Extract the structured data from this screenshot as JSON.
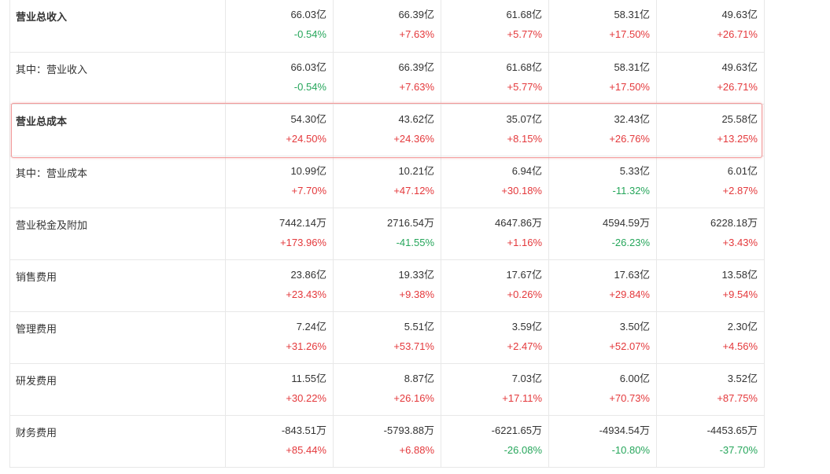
{
  "table": {
    "rows": [
      {
        "label": "营业总收入",
        "bold": true,
        "cells": [
          {
            "value": "66.03亿",
            "change": "-0.54%",
            "trend": "down"
          },
          {
            "value": "66.39亿",
            "change": "+7.63%",
            "trend": "up"
          },
          {
            "value": "61.68亿",
            "change": "+5.77%",
            "trend": "up"
          },
          {
            "value": "58.31亿",
            "change": "+17.50%",
            "trend": "up"
          },
          {
            "value": "49.63亿",
            "change": "+26.71%",
            "trend": "up"
          }
        ]
      },
      {
        "label": "其中：营业收入",
        "bold": false,
        "cells": [
          {
            "value": "66.03亿",
            "change": "-0.54%",
            "trend": "down"
          },
          {
            "value": "66.39亿",
            "change": "+7.63%",
            "trend": "up"
          },
          {
            "value": "61.68亿",
            "change": "+5.77%",
            "trend": "up"
          },
          {
            "value": "58.31亿",
            "change": "+17.50%",
            "trend": "up"
          },
          {
            "value": "49.63亿",
            "change": "+26.71%",
            "trend": "up"
          }
        ]
      },
      {
        "label": "营业总成本",
        "bold": true,
        "highlighted": true,
        "cells": [
          {
            "value": "54.30亿",
            "change": "+24.50%",
            "trend": "up"
          },
          {
            "value": "43.62亿",
            "change": "+24.36%",
            "trend": "up"
          },
          {
            "value": "35.07亿",
            "change": "+8.15%",
            "trend": "up"
          },
          {
            "value": "32.43亿",
            "change": "+26.76%",
            "trend": "up"
          },
          {
            "value": "25.58亿",
            "change": "+13.25%",
            "trend": "up"
          }
        ]
      },
      {
        "label": "其中：营业成本",
        "bold": false,
        "cells": [
          {
            "value": "10.99亿",
            "change": "+7.70%",
            "trend": "up"
          },
          {
            "value": "10.21亿",
            "change": "+47.12%",
            "trend": "up"
          },
          {
            "value": "6.94亿",
            "change": "+30.18%",
            "trend": "up"
          },
          {
            "value": "5.33亿",
            "change": "-11.32%",
            "trend": "down"
          },
          {
            "value": "6.01亿",
            "change": "+2.87%",
            "trend": "up"
          }
        ]
      },
      {
        "label": "营业税金及附加",
        "bold": false,
        "cells": [
          {
            "value": "7442.14万",
            "change": "+173.96%",
            "trend": "up"
          },
          {
            "value": "2716.54万",
            "change": "-41.55%",
            "trend": "down"
          },
          {
            "value": "4647.86万",
            "change": "+1.16%",
            "trend": "up"
          },
          {
            "value": "4594.59万",
            "change": "-26.23%",
            "trend": "down"
          },
          {
            "value": "6228.18万",
            "change": "+3.43%",
            "trend": "up"
          }
        ]
      },
      {
        "label": "销售费用",
        "bold": false,
        "cells": [
          {
            "value": "23.86亿",
            "change": "+23.43%",
            "trend": "up"
          },
          {
            "value": "19.33亿",
            "change": "+9.38%",
            "trend": "up"
          },
          {
            "value": "17.67亿",
            "change": "+0.26%",
            "trend": "up"
          },
          {
            "value": "17.63亿",
            "change": "+29.84%",
            "trend": "up"
          },
          {
            "value": "13.58亿",
            "change": "+9.54%",
            "trend": "up"
          }
        ]
      },
      {
        "label": "管理费用",
        "bold": false,
        "cells": [
          {
            "value": "7.24亿",
            "change": "+31.26%",
            "trend": "up"
          },
          {
            "value": "5.51亿",
            "change": "+53.71%",
            "trend": "up"
          },
          {
            "value": "3.59亿",
            "change": "+2.47%",
            "trend": "up"
          },
          {
            "value": "3.50亿",
            "change": "+52.07%",
            "trend": "up"
          },
          {
            "value": "2.30亿",
            "change": "+4.56%",
            "trend": "up"
          }
        ]
      },
      {
        "label": "研发费用",
        "bold": false,
        "cells": [
          {
            "value": "11.55亿",
            "change": "+30.22%",
            "trend": "up"
          },
          {
            "value": "8.87亿",
            "change": "+26.16%",
            "trend": "up"
          },
          {
            "value": "7.03亿",
            "change": "+17.11%",
            "trend": "up"
          },
          {
            "value": "6.00亿",
            "change": "+70.73%",
            "trend": "up"
          },
          {
            "value": "3.52亿",
            "change": "+87.75%",
            "trend": "up"
          }
        ]
      },
      {
        "label": "财务费用",
        "bold": false,
        "cells": [
          {
            "value": "-843.51万",
            "change": "+85.44%",
            "trend": "up"
          },
          {
            "value": "-5793.88万",
            "change": "+6.88%",
            "trend": "up"
          },
          {
            "value": "-6221.65万",
            "change": "-26.08%",
            "trend": "down"
          },
          {
            "value": "-4934.54万",
            "change": "-10.80%",
            "trend": "down"
          },
          {
            "value": "-4453.65万",
            "change": "-37.70%",
            "trend": "down"
          }
        ]
      }
    ]
  },
  "colors": {
    "up": "#e4393c",
    "down": "#26a65b",
    "text": "#333333",
    "border": "#e8e8e8",
    "highlight": "#f29a9a"
  }
}
